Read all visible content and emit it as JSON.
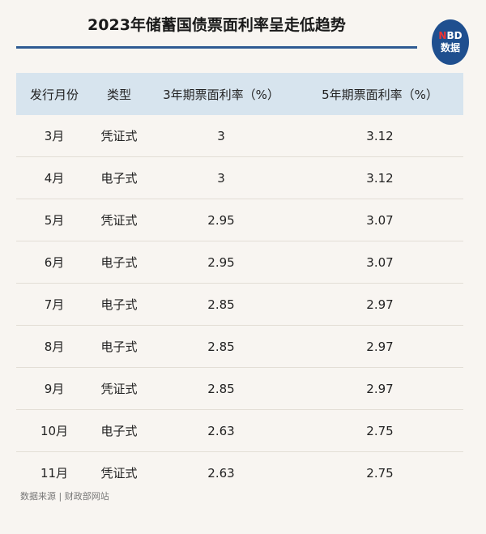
{
  "title": "2023年储蓄国债票面利率呈走低趋势",
  "logo": {
    "line1_accent": "N",
    "line1_rest": "BD",
    "line2": "数据"
  },
  "colors": {
    "accent": "#2f5b93",
    "header_bg": "#d7e4ee",
    "background": "#f8f5f1"
  },
  "chart_data": {
    "type": "table",
    "title": "2023年储蓄国债票面利率呈走低趋势",
    "columns": [
      "发行月份",
      "类型",
      "3年期票面利率（%）",
      "5年期票面利率（%）"
    ],
    "rows": [
      [
        "3月",
        "凭证式",
        "3",
        "3.12"
      ],
      [
        "4月",
        "电子式",
        "3",
        "3.12"
      ],
      [
        "5月",
        "凭证式",
        "2.95",
        "3.07"
      ],
      [
        "6月",
        "电子式",
        "2.95",
        "3.07"
      ],
      [
        "7月",
        "电子式",
        "2.85",
        "2.97"
      ],
      [
        "8月",
        "电子式",
        "2.85",
        "2.97"
      ],
      [
        "9月",
        "凭证式",
        "2.85",
        "2.97"
      ],
      [
        "10月",
        "电子式",
        "2.63",
        "2.75"
      ],
      [
        "11月",
        "凭证式",
        "2.63",
        "2.75"
      ]
    ]
  },
  "source": "数据来源 | 财政部网站"
}
